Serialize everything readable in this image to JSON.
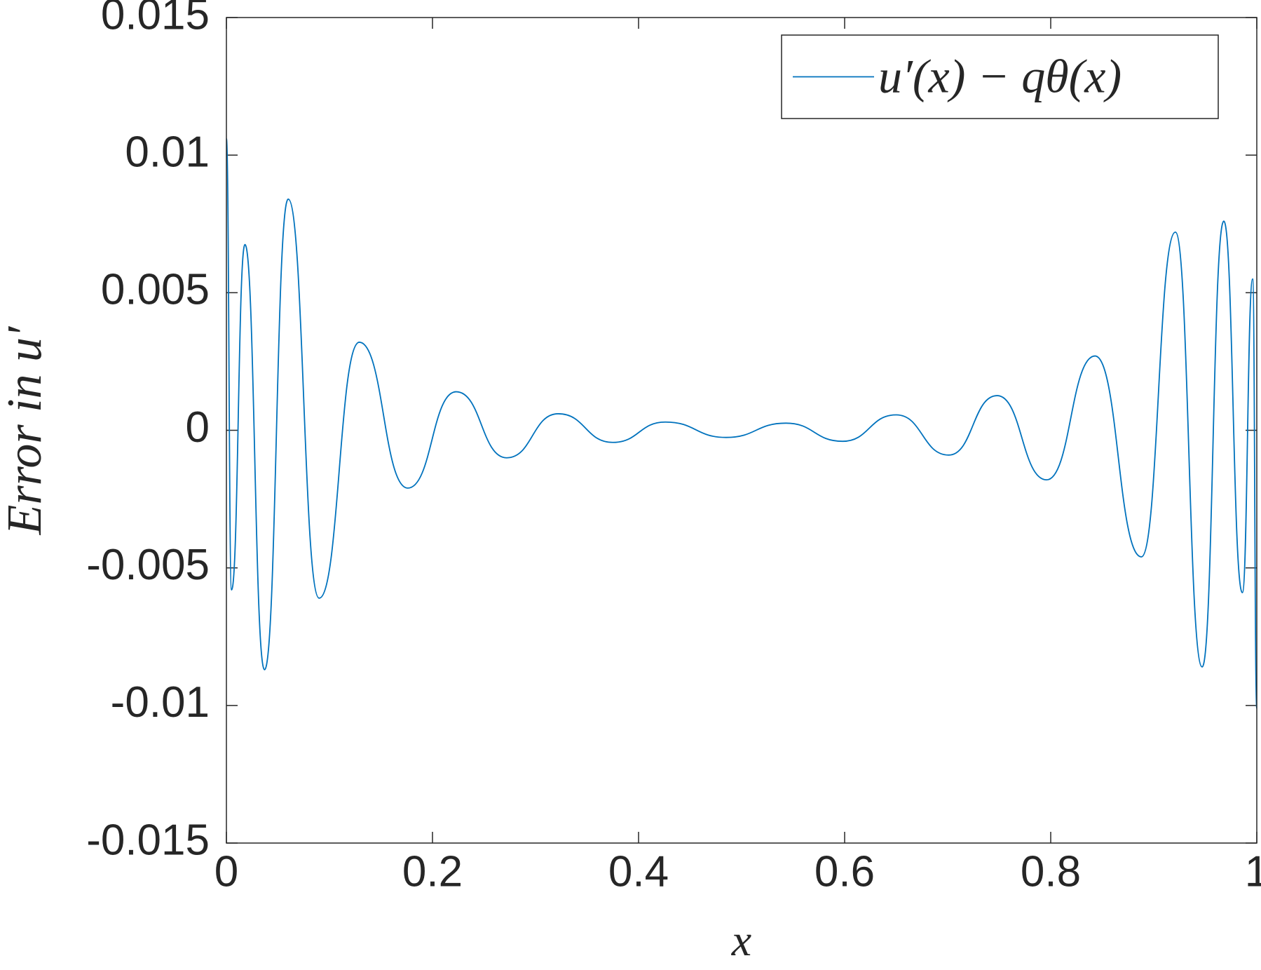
{
  "chart_data": {
    "type": "line",
    "xlabel": "x",
    "ylabel": "Error in u′",
    "x": [
      0,
      0.005,
      0.018,
      0.037,
      0.06,
      0.09,
      0.129,
      0.176,
      0.223,
      0.272,
      0.322,
      0.375,
      0.426,
      0.485,
      0.543,
      0.598,
      0.65,
      0.701,
      0.748,
      0.796,
      0.843,
      0.888,
      0.921,
      0.947,
      0.968,
      0.986,
      0.996,
      1
    ],
    "series": [
      {
        "name": "u′(x) − qθ(x)",
        "color": "#0072bd",
        "values": [
          0.0106,
          -0.0058,
          0.00675,
          -0.0087,
          0.0084,
          -0.0061,
          0.0032,
          -0.0021,
          0.0014,
          -0.001,
          0.0006,
          -0.00044,
          0.0003,
          -0.00026,
          0.00026,
          -0.0004,
          0.00056,
          -0.0009,
          0.00126,
          -0.0018,
          0.0027,
          -0.0046,
          0.0072,
          -0.0086,
          0.0076,
          -0.0059,
          0.0055,
          -0.0101
        ]
      }
    ],
    "xlim": [
      0,
      1
    ],
    "xticks": [
      0,
      0.2,
      0.4,
      0.6,
      0.8,
      1
    ],
    "ylim": [
      -0.015,
      0.015
    ],
    "yticks": [
      -0.015,
      -0.01,
      -0.005,
      0,
      0.005,
      0.01,
      0.015
    ],
    "grid": false,
    "legend": "upper right"
  }
}
